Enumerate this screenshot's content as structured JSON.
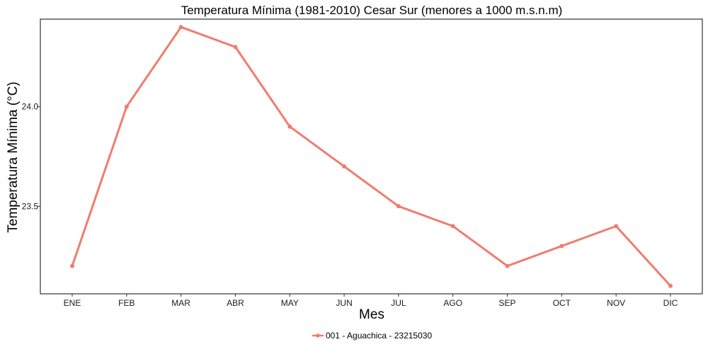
{
  "chart_data": {
    "type": "line",
    "title": "Temperatura Mínima (1981-2010) Cesar Sur (menores a 1000 m.s.n.m)",
    "xlabel": "Mes",
    "ylabel": "Temperatura Mínima (°C)",
    "categories": [
      "ENE",
      "FEB",
      "MAR",
      "ABR",
      "MAY",
      "JUN",
      "JUL",
      "AGO",
      "SEP",
      "OCT",
      "NOV",
      "DIC"
    ],
    "series": [
      {
        "name": "001 - Aguachica - 23215030",
        "color": "#F07C6E",
        "values": [
          23.2,
          24.0,
          24.4,
          24.3,
          23.9,
          23.7,
          23.5,
          23.4,
          23.2,
          23.3,
          23.4,
          23.1
        ]
      }
    ],
    "yticks": [
      23.5,
      24.0
    ],
    "ytick_labels": [
      "23.5",
      "24.0"
    ],
    "ylim": [
      23.06,
      24.44
    ],
    "grid": false,
    "legend_position": "bottom"
  }
}
